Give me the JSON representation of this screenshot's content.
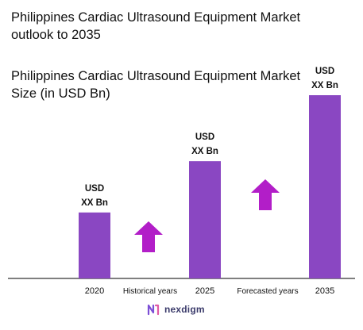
{
  "title": "Philippines Cardiac Ultrasound Equipment Market outlook to 2035",
  "subtitle": "Philippines Cardiac Ultrasound Equipment Market Size (in USD Bn)",
  "brand": {
    "name": "nexdigm",
    "icon": "nexdigm-logo-icon"
  },
  "colors": {
    "bar": "#8a47c2",
    "arrow": "#b21ec8",
    "axis": "#333333"
  },
  "chart_data": {
    "type": "bar",
    "title": "Philippines Cardiac Ultrasound Equipment Market Size (in USD Bn)",
    "categories": [
      "2020",
      "2025",
      "2035"
    ],
    "values": [
      36,
      64,
      100
    ],
    "value_scale": "relative (actual values masked as 'USD XX Bn')",
    "data_labels": [
      [
        "USD",
        "XX Bn"
      ],
      [
        "USD",
        "XX Bn"
      ],
      [
        "USD",
        "XX Bn"
      ]
    ],
    "periods": [
      "Historical years",
      "Forecasted years"
    ],
    "trend_arrows": [
      "up",
      "up"
    ],
    "ylim": [
      0,
      100
    ],
    "grid": false,
    "legend": "none"
  }
}
